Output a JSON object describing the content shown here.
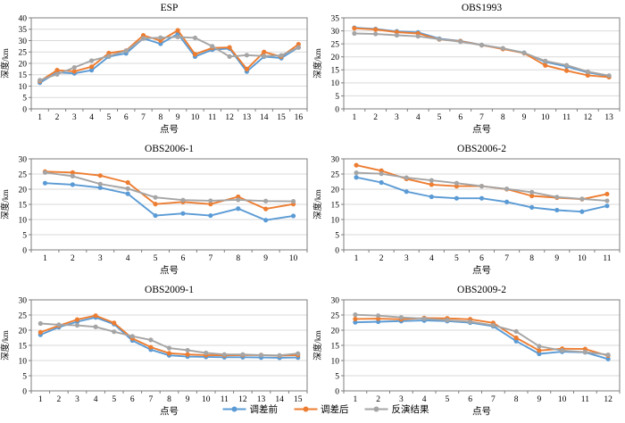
{
  "figure": {
    "x_axis_label": "点号",
    "y_axis_label": "深度/km"
  },
  "legend": {
    "items": [
      {
        "name": "series-before-adjustment",
        "label": "调差前",
        "color": "#5B9BD5"
      },
      {
        "name": "series-after-adjustment",
        "label": "调差后",
        "color": "#ED7D31"
      },
      {
        "name": "series-inversion-result",
        "label": "反演结果",
        "color": "#A5A5A5"
      }
    ]
  },
  "colors": {
    "axis": "#7F7F7F",
    "grid": "#D9D9D9",
    "text": "#000000",
    "blue": "#5B9BD5",
    "orange": "#ED7D31",
    "gray": "#A5A5A5"
  },
  "chart_data": [
    {
      "type": "line",
      "title": "ESP",
      "xlabel": "点号",
      "ylabel": "深度/km",
      "ylim": [
        0,
        40
      ],
      "ytick_step": 5,
      "grid": true,
      "categories": [
        1,
        2,
        3,
        4,
        5,
        6,
        7,
        8,
        9,
        10,
        11,
        12,
        13,
        14,
        15,
        16
      ],
      "series": [
        {
          "name": "调差前",
          "color": "#5B9BD5",
          "values": [
            11.5,
            16.0,
            15.6,
            17.0,
            23.0,
            24.4,
            31.0,
            28.6,
            33.0,
            23.0,
            26.0,
            26.5,
            16.4,
            23.0,
            22.3,
            27.0
          ]
        },
        {
          "name": "调差后",
          "color": "#ED7D31",
          "values": [
            12.2,
            17.0,
            16.5,
            18.5,
            24.5,
            25.6,
            32.3,
            30.0,
            34.5,
            24.0,
            26.8,
            27.0,
            17.5,
            25.0,
            23.0,
            28.4
          ]
        },
        {
          "name": "反演结果",
          "color": "#A5A5A5",
          "values": [
            12.6,
            15.2,
            18.2,
            21.2,
            23.2,
            25.5,
            31.0,
            31.3,
            31.6,
            31.2,
            27.5,
            23.0,
            23.6,
            23.2,
            23.5,
            27.0
          ]
        }
      ]
    },
    {
      "type": "line",
      "title": "OBS1993",
      "xlabel": "点号",
      "ylabel": "深度/km",
      "ylim": [
        0,
        35
      ],
      "ytick_step": 5,
      "grid": true,
      "categories": [
        1,
        2,
        3,
        4,
        5,
        6,
        7,
        8,
        9,
        10,
        11,
        12,
        13
      ],
      "series": [
        {
          "name": "调差前",
          "color": "#5B9BD5",
          "values": [
            31.2,
            30.7,
            29.8,
            29.4,
            27.0,
            26.1,
            24.6,
            23.2,
            21.6,
            18.0,
            16.3,
            14.0,
            12.6
          ]
        },
        {
          "name": "调差后",
          "color": "#ED7D31",
          "values": [
            31.0,
            30.5,
            29.5,
            29.0,
            26.7,
            26.0,
            24.5,
            23.0,
            21.4,
            16.7,
            14.7,
            12.9,
            12.2
          ]
        },
        {
          "name": "反演结果",
          "color": "#A5A5A5",
          "values": [
            29.0,
            28.8,
            28.3,
            27.9,
            26.8,
            25.8,
            24.5,
            23.3,
            21.5,
            18.4,
            16.8,
            14.3,
            12.8
          ]
        }
      ]
    },
    {
      "type": "line",
      "title": "OBS2006-1",
      "xlabel": "点号",
      "ylabel": "深度/km",
      "ylim": [
        0,
        30
      ],
      "ytick_step": 5,
      "grid": true,
      "categories": [
        1,
        2,
        3,
        4,
        5,
        6,
        7,
        8,
        9,
        10
      ],
      "series": [
        {
          "name": "调差前",
          "color": "#5B9BD5",
          "values": [
            22.0,
            21.5,
            20.5,
            18.5,
            11.3,
            12.0,
            11.3,
            13.6,
            9.8,
            11.2
          ]
        },
        {
          "name": "调差后",
          "color": "#ED7D31",
          "values": [
            25.8,
            25.5,
            24.5,
            22.2,
            15.1,
            15.8,
            15.1,
            17.5,
            13.5,
            15.1
          ]
        },
        {
          "name": "反演结果",
          "color": "#A5A5A5",
          "values": [
            25.5,
            24.3,
            21.7,
            20.2,
            17.3,
            16.4,
            16.2,
            16.5,
            16.1,
            16.0
          ]
        }
      ]
    },
    {
      "type": "line",
      "title": "OBS2006-2",
      "xlabel": "点号",
      "ylabel": "深度/km",
      "ylim": [
        0,
        30
      ],
      "ytick_step": 5,
      "grid": true,
      "categories": [
        1,
        2,
        3,
        4,
        5,
        6,
        7,
        8,
        9,
        10,
        11
      ],
      "series": [
        {
          "name": "调差前",
          "color": "#5B9BD5",
          "values": [
            23.9,
            22.2,
            19.2,
            17.5,
            17.0,
            17.0,
            15.8,
            14.0,
            13.1,
            12.6,
            14.5
          ]
        },
        {
          "name": "调差后",
          "color": "#ED7D31",
          "values": [
            27.9,
            26.1,
            23.4,
            21.5,
            21.0,
            21.0,
            20.0,
            17.8,
            17.2,
            16.7,
            18.4
          ]
        },
        {
          "name": "反演结果",
          "color": "#A5A5A5",
          "values": [
            25.4,
            25.1,
            23.8,
            22.9,
            22.0,
            21.0,
            20.1,
            19.0,
            17.4,
            16.8,
            16.2
          ]
        }
      ]
    },
    {
      "type": "line",
      "title": "OBS2009-1",
      "xlabel": "点号",
      "ylabel": "深度/km",
      "ylim": [
        0,
        30
      ],
      "ytick_step": 5,
      "grid": true,
      "categories": [
        1,
        2,
        3,
        4,
        5,
        6,
        7,
        8,
        9,
        10,
        11,
        12,
        13,
        14,
        15
      ],
      "series": [
        {
          "name": "调差前",
          "color": "#5B9BD5",
          "values": [
            18.5,
            21.0,
            22.8,
            24.2,
            22.0,
            16.6,
            13.6,
            11.7,
            11.3,
            11.2,
            11.1,
            11.1,
            11.0,
            10.9,
            11.0
          ]
        },
        {
          "name": "调差后",
          "color": "#ED7D31",
          "values": [
            19.3,
            21.5,
            23.5,
            24.8,
            22.4,
            17.3,
            14.4,
            12.4,
            12.0,
            11.8,
            11.7,
            11.8,
            11.8,
            11.6,
            11.8
          ]
        },
        {
          "name": "反演结果",
          "color": "#A5A5A5",
          "values": [
            22.2,
            21.8,
            21.6,
            21.1,
            19.5,
            18.0,
            16.8,
            14.1,
            13.4,
            12.5,
            12.0,
            12.0,
            11.8,
            11.7,
            12.3
          ]
        }
      ]
    },
    {
      "type": "line",
      "title": "OBS2009-2",
      "xlabel": "点号",
      "ylabel": "深度/km",
      "ylim": [
        0,
        30
      ],
      "ytick_step": 5,
      "grid": true,
      "categories": [
        1,
        2,
        3,
        4,
        5,
        6,
        7,
        8,
        9,
        10,
        11,
        12
      ],
      "series": [
        {
          "name": "调差前",
          "color": "#5B9BD5",
          "values": [
            22.6,
            22.8,
            23.0,
            23.2,
            23.0,
            22.5,
            21.3,
            16.4,
            12.2,
            12.9,
            12.7,
            10.5
          ]
        },
        {
          "name": "调差后",
          "color": "#ED7D31",
          "values": [
            23.7,
            23.8,
            23.6,
            24.0,
            23.9,
            23.6,
            22.4,
            17.5,
            13.3,
            13.9,
            13.8,
            11.6
          ]
        },
        {
          "name": "反演结果",
          "color": "#A5A5A5",
          "values": [
            25.1,
            24.8,
            24.2,
            23.8,
            23.3,
            22.8,
            21.6,
            19.6,
            14.7,
            13.3,
            12.8,
            11.9
          ]
        }
      ]
    }
  ]
}
